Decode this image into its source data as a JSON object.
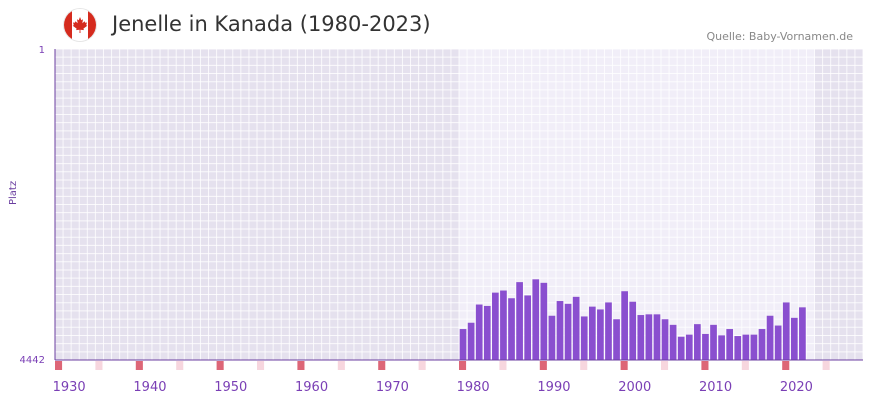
{
  "header": {
    "title": "Jenelle in Kanada (1980-2023)",
    "source": "Quelle: Baby-Vornamen.de",
    "flag_icon": "canada-flag-icon"
  },
  "colors": {
    "bar": "#8a4fcf",
    "axis": "#6b3fa0",
    "tick_label": "#7a3fb5",
    "decade_marker": "#dd6677",
    "half_decade_marker": "#f7d6de"
  },
  "chart_data": {
    "type": "bar",
    "title": "Jenelle in Kanada (1980-2023)",
    "xlabel": "",
    "ylabel": "Platz",
    "y_inverted": true,
    "ylim": [
      1,
      4442
    ],
    "y_ticks": [
      "1",
      "4442"
    ],
    "xlim": [
      1928,
      2028
    ],
    "x_ticks": [
      1930,
      1940,
      1950,
      1960,
      1970,
      1980,
      1990,
      2000,
      2010,
      2020
    ],
    "highlight_range": [
      1978,
      2022
    ],
    "grid": true,
    "years": [
      1978,
      1979,
      1980,
      1981,
      1982,
      1983,
      1984,
      1985,
      1986,
      1987,
      1988,
      1989,
      1990,
      1991,
      1992,
      1993,
      1994,
      1995,
      1996,
      1997,
      1998,
      1999,
      2000,
      2001,
      2002,
      2003,
      2004,
      2005,
      2006,
      2007,
      2008,
      2009,
      2010,
      2011,
      2012,
      2013,
      2014,
      2015,
      2016,
      2017,
      2018,
      2019,
      2020
    ],
    "values": [
      4000,
      3910,
      3650,
      3670,
      3480,
      3450,
      3560,
      3330,
      3520,
      3290,
      3340,
      3810,
      3600,
      3640,
      3540,
      3820,
      3680,
      3720,
      3620,
      3860,
      3460,
      3610,
      3800,
      3790,
      3790,
      3860,
      3940,
      4110,
      4080,
      3930,
      4070,
      3940,
      4090,
      4000,
      4100,
      4080,
      4080,
      4000,
      3810,
      3950,
      3620,
      3840,
      3690
    ]
  }
}
